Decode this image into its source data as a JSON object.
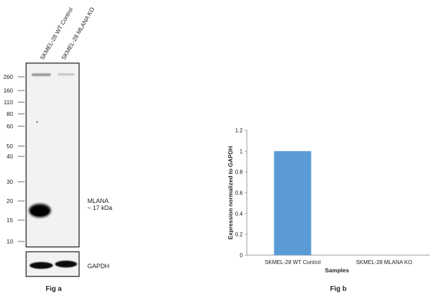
{
  "blot": {
    "lane_labels": [
      "SKMEL-28 WT Control",
      "SKMEL-28 MLANA KO"
    ],
    "markers": [
      "260",
      "160",
      "110",
      "80",
      "60",
      "50",
      "40",
      "30",
      "20",
      "15",
      "10"
    ],
    "band_label_1": "MLANA",
    "band_label_2": "~ 17 kDa",
    "control_label": "GAPDH",
    "caption": "Fig a"
  },
  "chart_data": {
    "type": "bar",
    "categories": [
      "SKMEL-28 WT Control",
      "SKMEL-28 MLANA KO"
    ],
    "values": [
      1.0,
      0.0
    ],
    "xlabel": "Samples",
    "ylabel": "Expression normalized to GAPDH",
    "ylim": [
      0,
      1.2
    ],
    "yticks": [
      "0",
      "0.2",
      "0.4",
      "0.6",
      "0.8",
      "1",
      "1.2"
    ],
    "bar_color": "#5b9bd5",
    "grid": false,
    "caption": "Fig b"
  }
}
